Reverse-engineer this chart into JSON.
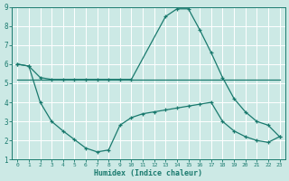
{
  "xlabel": "Humidex (Indice chaleur)",
  "bg_color": "#cce9e5",
  "line_color": "#1a7a6e",
  "grid_color": "#ffffff",
  "xlim": [
    -0.5,
    23.5
  ],
  "ylim": [
    1,
    9
  ],
  "yticks": [
    1,
    2,
    3,
    4,
    5,
    6,
    7,
    8,
    9
  ],
  "xticks": [
    0,
    1,
    2,
    3,
    4,
    5,
    6,
    7,
    8,
    9,
    10,
    11,
    12,
    13,
    14,
    15,
    16,
    17,
    18,
    19,
    20,
    21,
    22,
    23
  ],
  "line1_x": [
    0,
    1,
    2,
    3,
    4,
    5,
    6,
    7,
    8,
    9,
    10,
    13,
    14,
    15,
    16,
    17,
    18,
    19,
    20,
    21,
    22,
    23
  ],
  "line1_y": [
    6.0,
    5.9,
    5.3,
    5.2,
    5.2,
    5.2,
    5.2,
    5.2,
    5.2,
    5.2,
    5.2,
    8.5,
    8.9,
    8.9,
    7.8,
    6.6,
    5.3,
    4.2,
    3.5,
    3.0,
    2.8,
    2.2
  ],
  "line2_x": [
    0,
    23
  ],
  "line2_y": [
    5.2,
    5.2
  ],
  "line3_x": [
    0,
    1,
    2,
    3,
    4,
    5,
    6,
    7,
    8,
    9,
    10,
    11,
    12,
    13,
    14,
    15,
    16,
    17,
    18,
    19,
    20,
    21,
    22,
    23
  ],
  "line3_y": [
    6.0,
    5.9,
    4.0,
    3.0,
    2.5,
    2.05,
    1.6,
    1.4,
    1.5,
    2.8,
    3.2,
    3.4,
    3.5,
    3.6,
    3.7,
    3.8,
    3.9,
    4.0,
    3.0,
    2.5,
    2.2,
    2.0,
    1.9,
    2.2
  ]
}
